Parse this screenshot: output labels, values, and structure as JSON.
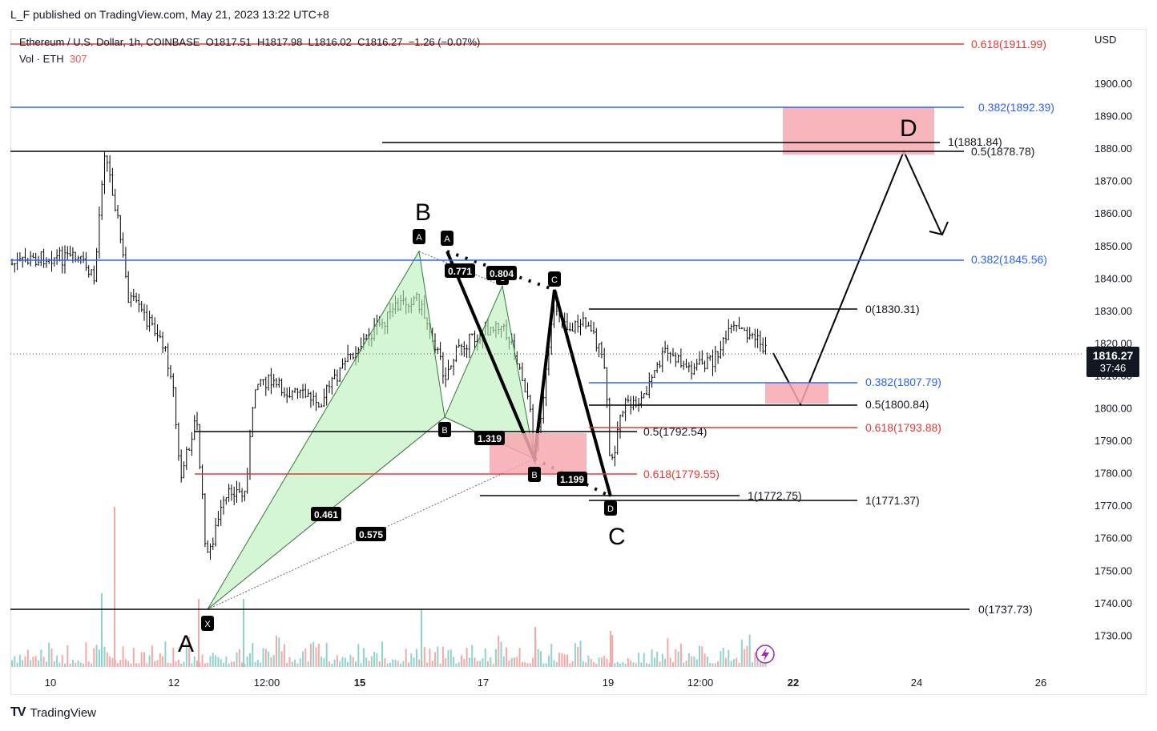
{
  "publisher": "L_F published on TradingView.com, May 21, 2023 13:22 UTC+8",
  "legend": {
    "symbol": "Ethereum / U.S. Dollar, 1h, COINBASE",
    "open": "O1817.51",
    "high": "H1817.98",
    "low": "L1816.02",
    "close": "C1816.27",
    "change": "−1.26 (−0.07%)",
    "vol_label": "Vol · ETH",
    "vol_value": "307"
  },
  "currency": "USD",
  "price_tag": {
    "price": "1816.27",
    "countdown": "37:46"
  },
  "footer": {
    "logo": "TV",
    "brand": "TradingView"
  },
  "colors": {
    "up": "#26a69a",
    "down": "#ef5350",
    "fib_blue": "#2962ff",
    "fib_red": "#e53935",
    "zone": "#f7a8b0",
    "pattern_fill": "#b9f0b9"
  },
  "chart_data": {
    "type": "candlestick",
    "title": "Ethereum / U.S. Dollar, 1h, COINBASE",
    "ylabel": "USD",
    "ylim": [
      1725,
      1912
    ],
    "y_ticks": [
      "1900.00",
      "1890.00",
      "1880.00",
      "1870.00",
      "1860.00",
      "1850.00",
      "1840.00",
      "1830.00",
      "1820.00",
      "1810.00",
      "1800.00",
      "1790.00",
      "1780.00",
      "1770.00",
      "1760.00",
      "1750.00",
      "1740.00",
      "1730.00"
    ],
    "x_ticks": [
      "10",
      "12",
      "12:00",
      "15",
      "17",
      "19",
      "12:00",
      "22",
      "24",
      "26"
    ],
    "x_ticks_bold": [
      "15",
      "22"
    ],
    "last_price": 1816.27,
    "fib_levels": [
      {
        "label": "0.618(1911.99)",
        "value": 1911.99,
        "color": "red"
      },
      {
        "label": "0.382(1892.39)",
        "value": 1892.39,
        "color": "blue"
      },
      {
        "label": "1(1881.84)",
        "value": 1881.84,
        "color": "black"
      },
      {
        "label": "0.5(1878.78)",
        "value": 1878.78,
        "color": "black"
      },
      {
        "label": "0.382(1845.56)",
        "value": 1845.56,
        "color": "blue"
      },
      {
        "label": "0(1830.31)",
        "value": 1830.31,
        "color": "black"
      },
      {
        "label": "0.382(1807.79)",
        "value": 1807.79,
        "color": "blue"
      },
      {
        "label": "0.5(1800.84)",
        "value": 1800.84,
        "color": "black"
      },
      {
        "label": "0.618(1793.88)",
        "value": 1793.88,
        "color": "red"
      },
      {
        "label": "0.5(1792.54)",
        "value": 1792.54,
        "color": "black"
      },
      {
        "label": "0.618(1779.55)",
        "value": 1779.55,
        "color": "red"
      },
      {
        "label": "1(1772.75)",
        "value": 1772.75,
        "color": "black"
      },
      {
        "label": "1(1771.37)",
        "value": 1771.37,
        "color": "black"
      },
      {
        "label": "0(1737.73)",
        "value": 1737.73,
        "color": "black"
      }
    ],
    "pattern_points": [
      "X",
      "A",
      "B",
      "C",
      "D"
    ],
    "pattern_ratios": [
      "0.461",
      "0.575",
      "1.319",
      "1.199",
      "0.804",
      "0.771"
    ],
    "wave_labels": [
      "A",
      "B",
      "C",
      "D"
    ]
  }
}
